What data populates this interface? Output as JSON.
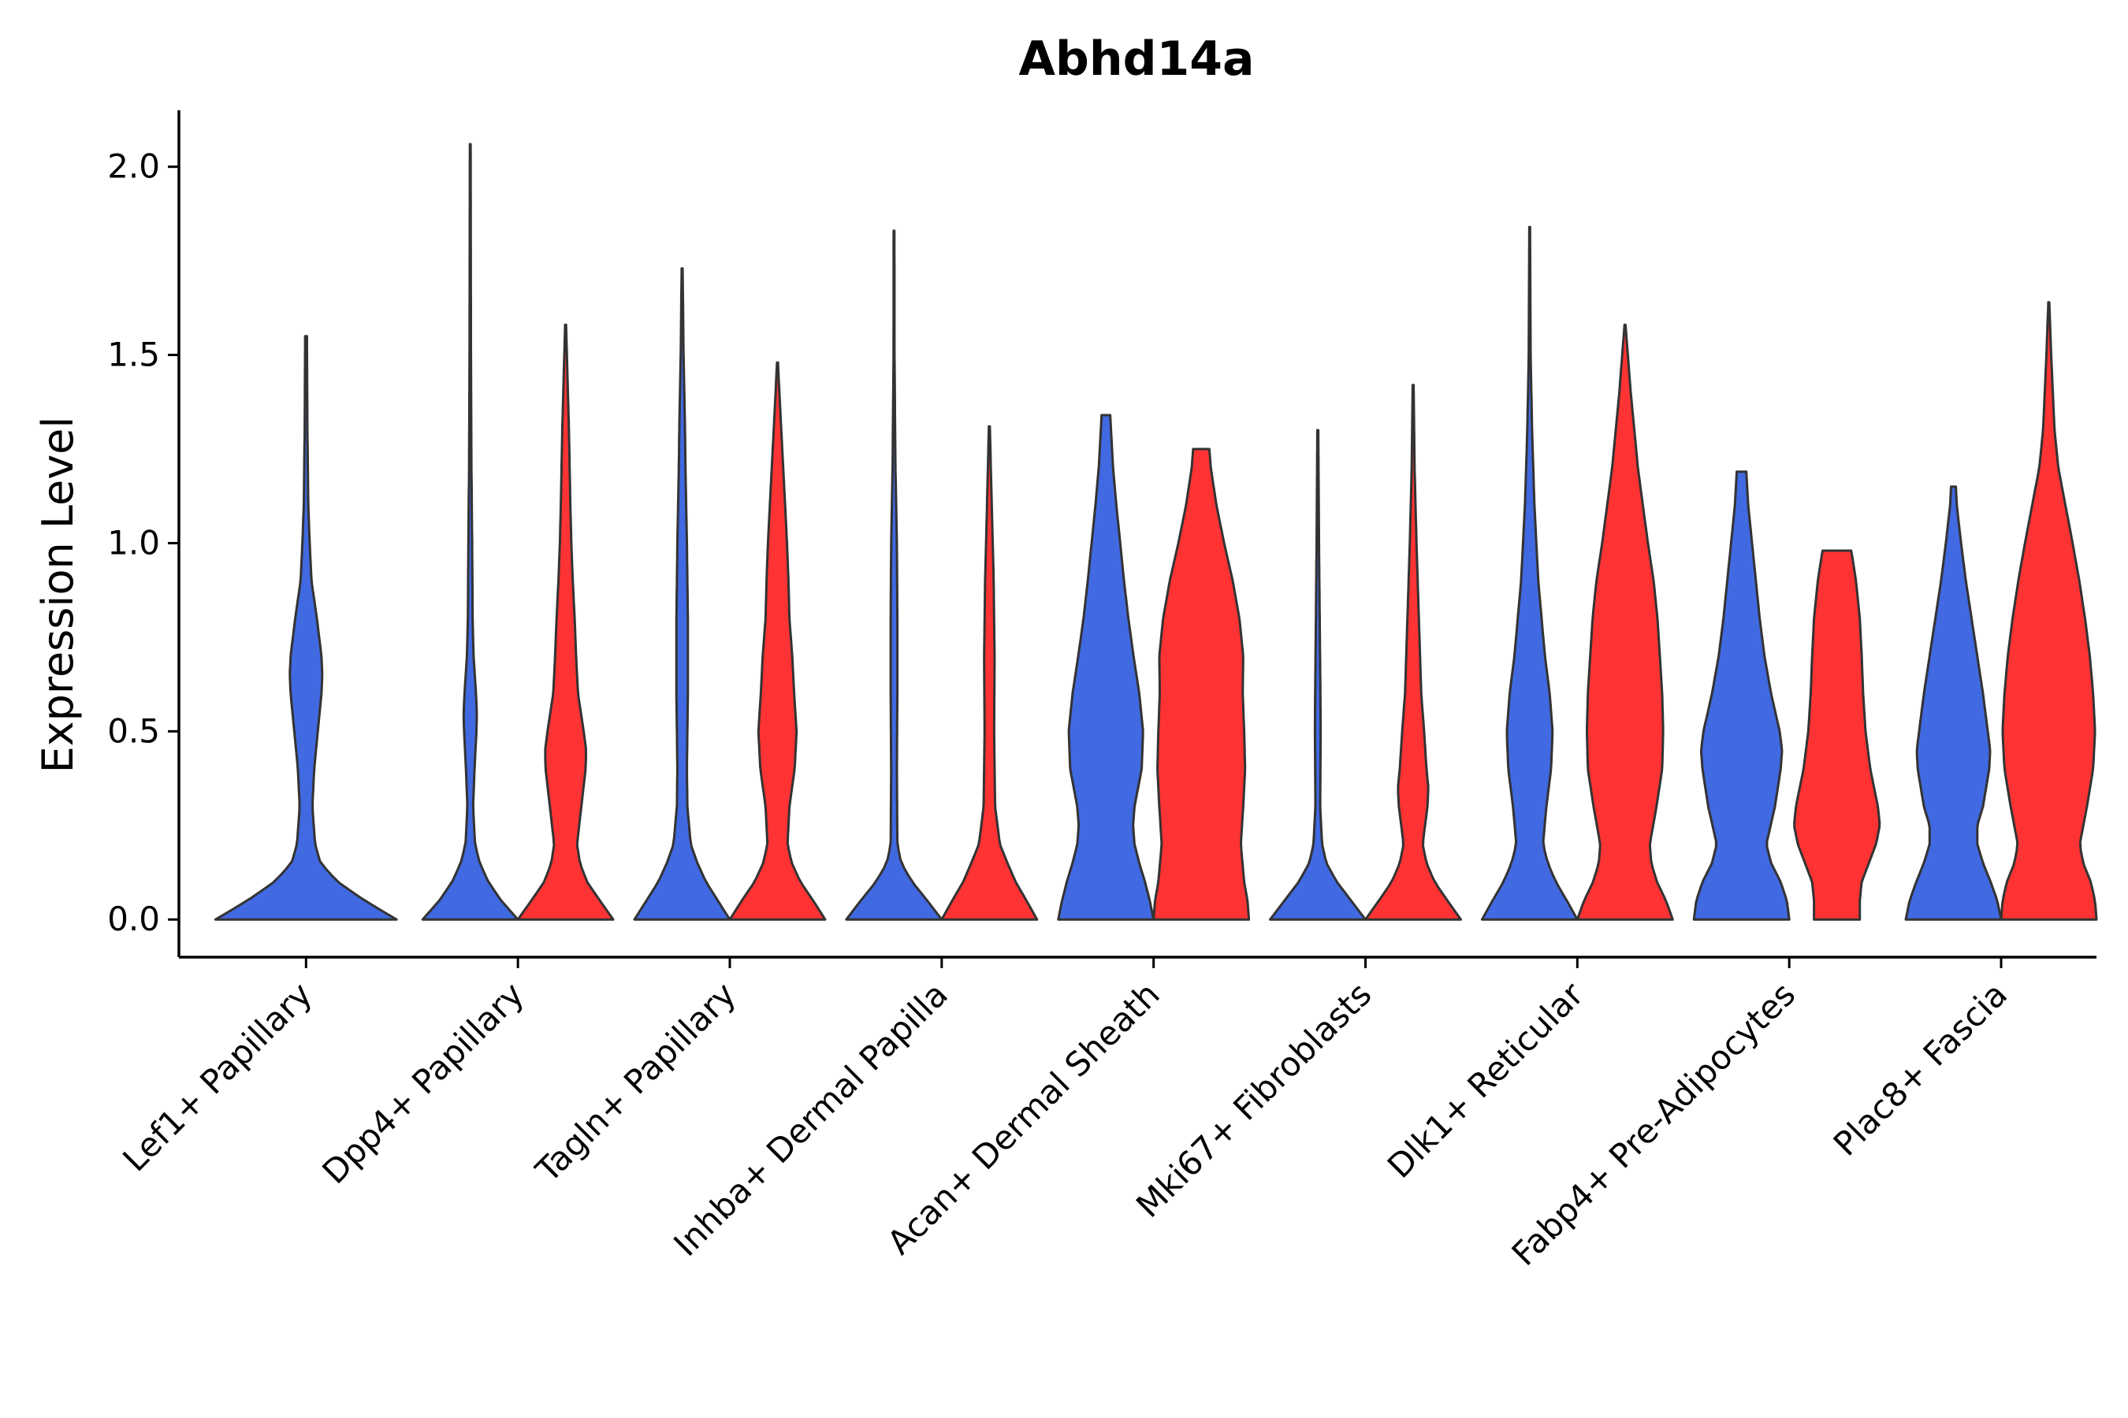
{
  "chart_data": {
    "type": "violin",
    "title": "Abhd14a",
    "xlabel": "",
    "ylabel": "Expression Level",
    "ylim": [
      -0.1,
      2.15
    ],
    "yticks": [
      "0.0",
      "0.5",
      "1.0",
      "1.5",
      "2.0"
    ],
    "ytick_values": [
      0.0,
      0.5,
      1.0,
      1.5,
      2.0
    ],
    "grid": false,
    "legend": "none",
    "colors": {
      "blue": "#4169E1",
      "red": "#FF3333",
      "outline": "#333333",
      "axis": "#000000"
    },
    "categories": [
      "Lef1+ Papillary",
      "Dpp4+ Papillary",
      "Tagln+ Papillary",
      "Inhba+ Dermal Papilla",
      "Acan+ Dermal Sheath",
      "Mki67+ Fibroblasts",
      "Dlk1+ Reticular",
      "Fabp4+ Pre-Adipocytes",
      "Plac8+ Fascia"
    ],
    "violins": [
      {
        "category": "Lef1+ Papillary",
        "group": "blue",
        "max": 1.55,
        "profile": [
          [
            0,
            1.0
          ],
          [
            0.05,
            0.65
          ],
          [
            0.1,
            0.35
          ],
          [
            0.15,
            0.16
          ],
          [
            0.2,
            0.1
          ],
          [
            0.3,
            0.07
          ],
          [
            0.4,
            0.09
          ],
          [
            0.5,
            0.13
          ],
          [
            0.6,
            0.17
          ],
          [
            0.65,
            0.18
          ],
          [
            0.7,
            0.17
          ],
          [
            0.8,
            0.12
          ],
          [
            0.9,
            0.06
          ],
          [
            1.0,
            0.04
          ],
          [
            1.1,
            0.025
          ],
          [
            1.3,
            0.015
          ],
          [
            1.55,
            0.01
          ]
        ]
      },
      {
        "category": "Dpp4+ Papillary",
        "group": "blue",
        "max": 2.06,
        "profile": [
          [
            0,
            1.0
          ],
          [
            0.05,
            0.65
          ],
          [
            0.1,
            0.38
          ],
          [
            0.15,
            0.2
          ],
          [
            0.2,
            0.1
          ],
          [
            0.3,
            0.06
          ],
          [
            0.4,
            0.09
          ],
          [
            0.5,
            0.13
          ],
          [
            0.55,
            0.14
          ],
          [
            0.6,
            0.12
          ],
          [
            0.7,
            0.07
          ],
          [
            0.8,
            0.05
          ],
          [
            1.0,
            0.04
          ],
          [
            1.2,
            0.025
          ],
          [
            1.5,
            0.015
          ],
          [
            2.06,
            0.008
          ]
        ]
      },
      {
        "category": "Dpp4+ Papillary",
        "group": "red",
        "max": 1.58,
        "profile": [
          [
            0,
            1.0
          ],
          [
            0.05,
            0.72
          ],
          [
            0.1,
            0.45
          ],
          [
            0.15,
            0.3
          ],
          [
            0.2,
            0.24
          ],
          [
            0.3,
            0.33
          ],
          [
            0.4,
            0.42
          ],
          [
            0.45,
            0.43
          ],
          [
            0.5,
            0.38
          ],
          [
            0.6,
            0.26
          ],
          [
            0.7,
            0.22
          ],
          [
            0.8,
            0.19
          ],
          [
            0.9,
            0.15
          ],
          [
            1.0,
            0.12
          ],
          [
            1.1,
            0.1
          ],
          [
            1.3,
            0.07
          ],
          [
            1.58,
            0.01
          ]
        ]
      },
      {
        "category": "Tagln+ Papillary",
        "group": "blue",
        "max": 1.73,
        "profile": [
          [
            0,
            1.0
          ],
          [
            0.05,
            0.75
          ],
          [
            0.1,
            0.5
          ],
          [
            0.15,
            0.32
          ],
          [
            0.2,
            0.18
          ],
          [
            0.3,
            0.11
          ],
          [
            0.4,
            0.1
          ],
          [
            0.6,
            0.12
          ],
          [
            0.8,
            0.12
          ],
          [
            1.0,
            0.1
          ],
          [
            1.2,
            0.07
          ],
          [
            1.3,
            0.06
          ],
          [
            1.5,
            0.03
          ],
          [
            1.73,
            0.01
          ]
        ]
      },
      {
        "category": "Tagln+ Papillary",
        "group": "red",
        "max": 1.48,
        "profile": [
          [
            0,
            1.0
          ],
          [
            0.05,
            0.75
          ],
          [
            0.1,
            0.48
          ],
          [
            0.15,
            0.3
          ],
          [
            0.2,
            0.21
          ],
          [
            0.3,
            0.25
          ],
          [
            0.4,
            0.36
          ],
          [
            0.5,
            0.4
          ],
          [
            0.6,
            0.35
          ],
          [
            0.7,
            0.31
          ],
          [
            0.8,
            0.25
          ],
          [
            0.9,
            0.23
          ],
          [
            1.0,
            0.2
          ],
          [
            1.2,
            0.12
          ],
          [
            1.4,
            0.04
          ],
          [
            1.48,
            0.01
          ]
        ]
      },
      {
        "category": "Inhba+ Dermal Papilla",
        "group": "blue",
        "max": 1.83,
        "profile": [
          [
            0,
            1.0
          ],
          [
            0.05,
            0.7
          ],
          [
            0.1,
            0.38
          ],
          [
            0.15,
            0.15
          ],
          [
            0.2,
            0.07
          ],
          [
            0.4,
            0.06
          ],
          [
            0.6,
            0.07
          ],
          [
            0.8,
            0.07
          ],
          [
            1.0,
            0.06
          ],
          [
            1.2,
            0.03
          ],
          [
            1.5,
            0.01
          ],
          [
            1.83,
            0.008
          ]
        ]
      },
      {
        "category": "Inhba+ Dermal Papilla",
        "group": "red",
        "max": 1.31,
        "profile": [
          [
            0,
            1.0
          ],
          [
            0.05,
            0.78
          ],
          [
            0.1,
            0.55
          ],
          [
            0.15,
            0.38
          ],
          [
            0.2,
            0.22
          ],
          [
            0.3,
            0.12
          ],
          [
            0.5,
            0.1
          ],
          [
            0.7,
            0.11
          ],
          [
            0.9,
            0.09
          ],
          [
            1.1,
            0.05
          ],
          [
            1.31,
            0.01
          ]
        ]
      },
      {
        "category": "Acan+ Dermal Sheath",
        "group": "blue",
        "max": 1.34,
        "profile": [
          [
            0,
            1.0
          ],
          [
            0.05,
            0.92
          ],
          [
            0.1,
            0.82
          ],
          [
            0.15,
            0.7
          ],
          [
            0.2,
            0.6
          ],
          [
            0.25,
            0.57
          ],
          [
            0.3,
            0.6
          ],
          [
            0.4,
            0.75
          ],
          [
            0.5,
            0.78
          ],
          [
            0.6,
            0.7
          ],
          [
            0.7,
            0.58
          ],
          [
            0.8,
            0.47
          ],
          [
            0.9,
            0.38
          ],
          [
            1.0,
            0.3
          ],
          [
            1.1,
            0.22
          ],
          [
            1.2,
            0.15
          ],
          [
            1.34,
            0.09
          ]
        ]
      },
      {
        "category": "Acan+ Dermal Sheath",
        "group": "red",
        "max": 1.25,
        "profile": [
          [
            0,
            1.0
          ],
          [
            0.05,
            0.97
          ],
          [
            0.1,
            0.9
          ],
          [
            0.2,
            0.83
          ],
          [
            0.3,
            0.88
          ],
          [
            0.4,
            0.92
          ],
          [
            0.5,
            0.9
          ],
          [
            0.6,
            0.87
          ],
          [
            0.7,
            0.88
          ],
          [
            0.8,
            0.8
          ],
          [
            0.9,
            0.66
          ],
          [
            1.0,
            0.48
          ],
          [
            1.1,
            0.32
          ],
          [
            1.2,
            0.2
          ],
          [
            1.25,
            0.17
          ]
        ]
      },
      {
        "category": "Mki67+ Fibroblasts",
        "group": "blue",
        "max": 1.3,
        "profile": [
          [
            0,
            1.0
          ],
          [
            0.05,
            0.7
          ],
          [
            0.1,
            0.4
          ],
          [
            0.15,
            0.18
          ],
          [
            0.2,
            0.09
          ],
          [
            0.3,
            0.05
          ],
          [
            0.5,
            0.06
          ],
          [
            0.6,
            0.055
          ],
          [
            0.8,
            0.04
          ],
          [
            1.0,
            0.025
          ],
          [
            1.3,
            0.01
          ]
        ]
      },
      {
        "category": "Mki67+ Fibroblasts",
        "group": "red",
        "max": 1.42,
        "profile": [
          [
            0,
            1.0
          ],
          [
            0.05,
            0.72
          ],
          [
            0.1,
            0.45
          ],
          [
            0.15,
            0.28
          ],
          [
            0.2,
            0.2
          ],
          [
            0.3,
            0.3
          ],
          [
            0.35,
            0.32
          ],
          [
            0.4,
            0.28
          ],
          [
            0.5,
            0.23
          ],
          [
            0.6,
            0.17
          ],
          [
            0.8,
            0.12
          ],
          [
            1.0,
            0.07
          ],
          [
            1.2,
            0.03
          ],
          [
            1.42,
            0.01
          ]
        ]
      },
      {
        "category": "Dlk1+ Reticular",
        "group": "blue",
        "max": 1.84,
        "profile": [
          [
            0,
            1.0
          ],
          [
            0.05,
            0.78
          ],
          [
            0.1,
            0.55
          ],
          [
            0.15,
            0.38
          ],
          [
            0.2,
            0.28
          ],
          [
            0.3,
            0.35
          ],
          [
            0.4,
            0.45
          ],
          [
            0.5,
            0.48
          ],
          [
            0.6,
            0.42
          ],
          [
            0.7,
            0.32
          ],
          [
            0.9,
            0.18
          ],
          [
            1.1,
            0.1
          ],
          [
            1.3,
            0.05
          ],
          [
            1.5,
            0.02
          ],
          [
            1.84,
            0.008
          ]
        ]
      },
      {
        "category": "Dlk1+ Reticular",
        "group": "red",
        "max": 1.58,
        "profile": [
          [
            0,
            1.0
          ],
          [
            0.05,
            0.86
          ],
          [
            0.1,
            0.67
          ],
          [
            0.15,
            0.55
          ],
          [
            0.2,
            0.52
          ],
          [
            0.3,
            0.66
          ],
          [
            0.4,
            0.78
          ],
          [
            0.5,
            0.8
          ],
          [
            0.6,
            0.78
          ],
          [
            0.7,
            0.73
          ],
          [
            0.8,
            0.68
          ],
          [
            0.9,
            0.6
          ],
          [
            1.0,
            0.48
          ],
          [
            1.2,
            0.27
          ],
          [
            1.4,
            0.12
          ],
          [
            1.58,
            0.01
          ]
        ]
      },
      {
        "category": "Fabp4+ Pre-Adipocytes",
        "group": "blue",
        "max": 1.19,
        "profile": [
          [
            0,
            1.0
          ],
          [
            0.05,
            0.95
          ],
          [
            0.1,
            0.82
          ],
          [
            0.15,
            0.62
          ],
          [
            0.2,
            0.52
          ],
          [
            0.3,
            0.7
          ],
          [
            0.4,
            0.82
          ],
          [
            0.45,
            0.85
          ],
          [
            0.5,
            0.8
          ],
          [
            0.6,
            0.62
          ],
          [
            0.7,
            0.48
          ],
          [
            0.8,
            0.38
          ],
          [
            0.9,
            0.3
          ],
          [
            1.0,
            0.22
          ],
          [
            1.1,
            0.14
          ],
          [
            1.19,
            0.1
          ]
        ]
      },
      {
        "category": "Fabp4+ Pre-Adipocytes",
        "group": "red",
        "max": 0.98,
        "profile": [
          [
            0,
            0.48
          ],
          [
            0.05,
            0.48
          ],
          [
            0.1,
            0.52
          ],
          [
            0.2,
            0.82
          ],
          [
            0.25,
            0.9
          ],
          [
            0.3,
            0.86
          ],
          [
            0.4,
            0.7
          ],
          [
            0.5,
            0.6
          ],
          [
            0.6,
            0.55
          ],
          [
            0.7,
            0.52
          ],
          [
            0.8,
            0.48
          ],
          [
            0.9,
            0.4
          ],
          [
            0.95,
            0.34
          ],
          [
            0.98,
            0.3
          ]
        ]
      },
      {
        "category": "Plac8+ Fascia",
        "group": "blue",
        "max": 1.15,
        "profile": [
          [
            0,
            1.0
          ],
          [
            0.05,
            0.92
          ],
          [
            0.1,
            0.78
          ],
          [
            0.15,
            0.62
          ],
          [
            0.2,
            0.5
          ],
          [
            0.25,
            0.5
          ],
          [
            0.3,
            0.62
          ],
          [
            0.4,
            0.75
          ],
          [
            0.45,
            0.77
          ],
          [
            0.5,
            0.72
          ],
          [
            0.6,
            0.62
          ],
          [
            0.7,
            0.5
          ],
          [
            0.8,
            0.38
          ],
          [
            0.9,
            0.26
          ],
          [
            1.0,
            0.16
          ],
          [
            1.1,
            0.07
          ],
          [
            1.15,
            0.05
          ]
        ]
      },
      {
        "category": "Plac8+ Fascia",
        "group": "red",
        "max": 1.64,
        "profile": [
          [
            0,
            1.0
          ],
          [
            0.05,
            0.97
          ],
          [
            0.1,
            0.88
          ],
          [
            0.15,
            0.72
          ],
          [
            0.2,
            0.65
          ],
          [
            0.3,
            0.8
          ],
          [
            0.4,
            0.93
          ],
          [
            0.5,
            0.97
          ],
          [
            0.6,
            0.93
          ],
          [
            0.7,
            0.86
          ],
          [
            0.8,
            0.76
          ],
          [
            0.9,
            0.64
          ],
          [
            1.0,
            0.5
          ],
          [
            1.1,
            0.35
          ],
          [
            1.2,
            0.2
          ],
          [
            1.3,
            0.12
          ],
          [
            1.5,
            0.05
          ],
          [
            1.64,
            0.01
          ]
        ]
      }
    ]
  }
}
